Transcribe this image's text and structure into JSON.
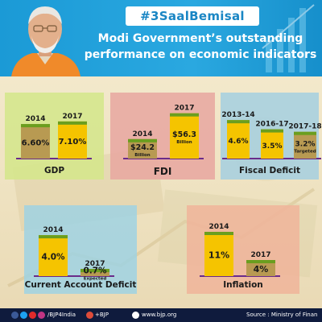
{
  "header": {
    "hashtag": "#3SaalBemisal",
    "title_line1": "Modi Government’s outstanding",
    "title_line2": "performance on economic indicators"
  },
  "colors": {
    "bar_yellow": "#f5c400",
    "bar_olive": "#b89a52",
    "bar_top_green": "#6a9e1f",
    "footer_bg": "#0f1b3d",
    "header_blue": "#1e9fd9"
  },
  "chart_data": [
    {
      "id": "gdp",
      "type": "bar",
      "title": "GDP",
      "categories": [
        "2014",
        "2017"
      ],
      "values": [
        6.6,
        7.1
      ],
      "value_labels": [
        "6.60%",
        "7.10%"
      ],
      "sublabels": [
        "",
        ""
      ],
      "ylim": [
        0,
        8
      ],
      "bar_colors": [
        "olive",
        "yellow"
      ],
      "panel_color": "#d4e68a"
    },
    {
      "id": "fdi",
      "type": "bar",
      "title": "FDI",
      "categories": [
        "2014",
        "2017"
      ],
      "values": [
        24.2,
        56.3
      ],
      "value_labels": [
        "$24.2",
        "$56.3"
      ],
      "sublabels": [
        "Billion",
        "Billion"
      ],
      "ylim": [
        0,
        60
      ],
      "bar_colors": [
        "olive",
        "yellow"
      ],
      "panel_color": "#e8a6a0"
    },
    {
      "id": "fiscal",
      "type": "bar",
      "title": "Fiscal Deficit",
      "categories": [
        "2013-14",
        "2016-17",
        "2017-18"
      ],
      "values": [
        4.6,
        3.5,
        3.2
      ],
      "value_labels": [
        "4.6%",
        "3.5%",
        "3.2%"
      ],
      "sublabels": [
        "",
        "",
        "Targeted"
      ],
      "ylim": [
        0,
        5
      ],
      "bar_colors": [
        "yellow",
        "yellow",
        "olive"
      ],
      "panel_color": "#a5cfe0"
    },
    {
      "id": "cad",
      "type": "bar",
      "title": "Current Account Deficit",
      "categories": [
        "2014",
        "2017"
      ],
      "values": [
        4.0,
        0.7
      ],
      "value_labels": [
        "4.0%",
        "0.7%"
      ],
      "sublabels": [
        "",
        "Expected"
      ],
      "ylim": [
        0,
        4.4
      ],
      "bar_colors": [
        "yellow",
        "olive"
      ],
      "panel_color": "#9fd2e3"
    },
    {
      "id": "inflation",
      "type": "bar",
      "title": "Inflation",
      "categories": [
        "2014",
        "2017"
      ],
      "values": [
        11,
        4
      ],
      "value_labels": [
        "11%",
        "4%"
      ],
      "sublabels": [
        "",
        ""
      ],
      "ylim": [
        0,
        12
      ],
      "bar_colors": [
        "yellow",
        "olive"
      ],
      "panel_color": "#f0b49a"
    }
  ],
  "footer": {
    "handle": "/BJP4India",
    "plus": "+BJP",
    "website": "www.bjp.org",
    "source": "Source : Ministry of Finan"
  }
}
